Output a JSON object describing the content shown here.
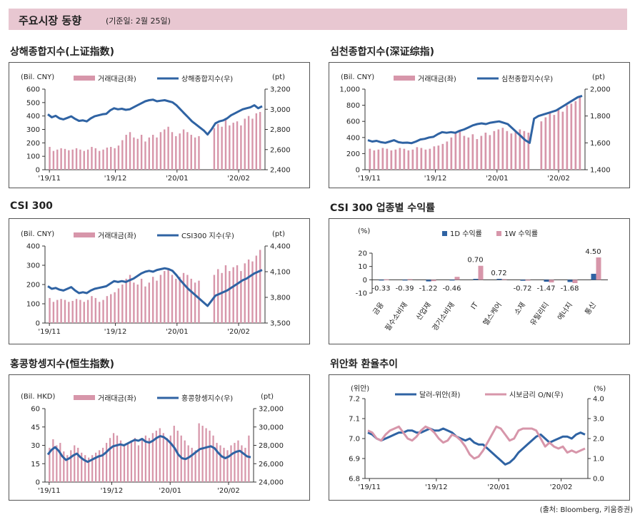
{
  "header": {
    "title": "주요시장 동향",
    "subtitle": "(기준일: 2월 25일)"
  },
  "source": "(출처: Bloomberg, 키움증권)",
  "colors": {
    "bar": "#d796aa",
    "line": "#2f63a3",
    "banner": "#e8c7d1"
  },
  "chart_data": [
    {
      "type": "bar+line",
      "title": "상해종합지수(上证指数)",
      "left_unit": "(Bil. CNY)",
      "right_unit": "(pt)",
      "legend": [
        "거래대금(좌)",
        "상해종합지수(우)"
      ],
      "x_ticks": [
        "'19/11",
        "'19/12",
        "'20/01",
        "'20/02"
      ],
      "left_ticks": [
        "0",
        "100",
        "200",
        "300",
        "400",
        "500",
        "600"
      ],
      "right_ticks": [
        "2,400",
        "2,600",
        "2,800",
        "3,000",
        "3,200"
      ],
      "ylim_left": [
        0,
        600
      ],
      "ylim_right": [
        2400,
        3200
      ],
      "line": [
        2950,
        2920,
        2935,
        2910,
        2900,
        2915,
        2930,
        2905,
        2885,
        2890,
        2880,
        2910,
        2930,
        2940,
        2950,
        2955,
        2990,
        3010,
        3000,
        3005,
        2995,
        3000,
        3020,
        3040,
        3060,
        3080,
        3090,
        3095,
        3080,
        3085,
        3090,
        3080,
        3070,
        3040,
        3000,
        2960,
        2920,
        2880,
        2850,
        2820,
        2790,
        2750,
        2800,
        2860,
        2880,
        2890,
        2910,
        2940,
        2960,
        2980,
        3000,
        3010,
        3020,
        3040,
        3010,
        3030
      ],
      "bars": [
        170,
        140,
        150,
        160,
        155,
        145,
        150,
        160,
        150,
        140,
        150,
        170,
        160,
        140,
        150,
        165,
        170,
        160,
        180,
        220,
        260,
        280,
        240,
        230,
        260,
        210,
        240,
        260,
        240,
        280,
        300,
        320,
        280,
        250,
        270,
        300,
        280,
        260,
        240,
        250,
        0,
        0,
        0,
        310,
        340,
        320,
        380,
        330,
        350,
        360,
        330,
        380,
        400,
        380,
        420,
        430
      ]
    },
    {
      "type": "bar+line",
      "title": "심천종합지수(深证综指)",
      "left_unit": "(Bil. CNY)",
      "right_unit": "(pt)",
      "legend": [
        "거래대금(좌)",
        "심천종합지수(우)"
      ],
      "x_ticks": [
        "'19/11",
        "'19/12",
        "'20/01",
        "'20/02"
      ],
      "left_ticks": [
        "0",
        "200",
        "400",
        "600",
        "800",
        "1,000"
      ],
      "right_ticks": [
        "1,400",
        "1,600",
        "1,800",
        "2,000"
      ],
      "ylim_left": [
        0,
        1000
      ],
      "ylim_right": [
        1400,
        2000
      ],
      "line": [
        1620,
        1610,
        1615,
        1605,
        1600,
        1610,
        1620,
        1605,
        1600,
        1602,
        1598,
        1610,
        1625,
        1630,
        1640,
        1645,
        1665,
        1680,
        1675,
        1680,
        1675,
        1690,
        1700,
        1715,
        1730,
        1740,
        1745,
        1740,
        1750,
        1755,
        1760,
        1750,
        1740,
        1710,
        1680,
        1650,
        1620,
        1600,
        1780,
        1800,
        1810,
        1820,
        1830,
        1840,
        1860,
        1880,
        1900,
        1920,
        1940,
        1950
      ],
      "bars": [
        260,
        240,
        250,
        270,
        260,
        240,
        250,
        270,
        260,
        240,
        250,
        280,
        270,
        250,
        260,
        290,
        300,
        320,
        350,
        400,
        450,
        480,
        420,
        400,
        440,
        380,
        420,
        460,
        430,
        480,
        500,
        520,
        480,
        450,
        470,
        500,
        480,
        460,
        0,
        0,
        600,
        650,
        700,
        680,
        750,
        720,
        800,
        820,
        850,
        900
      ]
    },
    {
      "type": "bar+line",
      "title": "CSI 300",
      "left_unit": "(Bil. CNY)",
      "right_unit": "(pt)",
      "legend": [
        "거래대금(좌)",
        "CSI300 지수(우)"
      ],
      "x_ticks": [
        "'19/11",
        "'19/12",
        "'20/01",
        "'20/02"
      ],
      "left_ticks": [
        "0",
        "100",
        "200",
        "300",
        "400"
      ],
      "right_ticks": [
        "3,500",
        "3,800",
        "4,100",
        "4,400"
      ],
      "ylim_left": [
        0,
        400
      ],
      "ylim_right": [
        3500,
        4400
      ],
      "line": [
        3930,
        3900,
        3910,
        3890,
        3880,
        3900,
        3920,
        3880,
        3850,
        3860,
        3850,
        3880,
        3900,
        3910,
        3920,
        3930,
        3960,
        3990,
        3980,
        3990,
        3980,
        4000,
        4020,
        4050,
        4080,
        4100,
        4110,
        4100,
        4120,
        4130,
        4140,
        4130,
        4110,
        4060,
        4000,
        3950,
        3900,
        3860,
        3820,
        3780,
        3740,
        3700,
        3760,
        3820,
        3840,
        3860,
        3880,
        3910,
        3940,
        3970,
        4000,
        4020,
        4050,
        4080,
        4100,
        4120
      ],
      "bars": [
        130,
        110,
        120,
        125,
        120,
        110,
        115,
        125,
        120,
        110,
        120,
        140,
        130,
        110,
        120,
        140,
        150,
        160,
        180,
        200,
        230,
        250,
        210,
        200,
        230,
        190,
        210,
        240,
        220,
        250,
        270,
        280,
        250,
        230,
        240,
        260,
        250,
        230,
        210,
        220,
        0,
        0,
        0,
        250,
        280,
        260,
        300,
        270,
        290,
        300,
        270,
        310,
        330,
        320,
        350,
        380
      ]
    },
    {
      "type": "bar",
      "title": "CSI 300 업종별 수익률",
      "unit": "(%)",
      "legend": [
        "1D 수익률",
        "1W 수익률"
      ],
      "ylim": [
        -10,
        20
      ],
      "y_ticks": [
        "-10",
        "0",
        "10",
        "20"
      ],
      "categories": [
        "금융",
        "필수소비재",
        "산업재",
        "경기소비재",
        "IT",
        "헬스케어",
        "소재",
        "유틸리티",
        "에너지",
        "통신"
      ],
      "series": [
        {
          "name": "1D 수익률",
          "values": [
            -0.33,
            -0.39,
            -1.22,
            -0.46,
            0.7,
            0.72,
            -0.72,
            -1.47,
            -1.68,
            4.5
          ]
        },
        {
          "name": "1W 수익률",
          "values": [
            0.3,
            0.5,
            -1.0,
            2.2,
            10.5,
            0.5,
            -0.6,
            -2.0,
            -2.5,
            16.8
          ]
        }
      ],
      "labels": [
        "-0.33",
        "-0.39",
        "-1.22",
        "-0.46",
        "0.70",
        "0.72",
        "-0.72",
        "-1.47",
        "-1.68",
        "4.50"
      ]
    },
    {
      "type": "bar+line",
      "title": "홍콩항셍지수(恒生指数)",
      "left_unit": "(Bil. HKD)",
      "right_unit": "(pt)",
      "legend": [
        "거래대금(좌)",
        "홍콩항셍지수(우)"
      ],
      "x_ticks": [
        "'19/11",
        "'19/12",
        "'20/01",
        "'20/02"
      ],
      "left_ticks": [
        "0",
        "15",
        "30",
        "45",
        "60"
      ],
      "right_ticks": [
        "24,000",
        "26,000",
        "28,000",
        "30,000",
        "32,000"
      ],
      "ylim_left": [
        0,
        60
      ],
      "ylim_right": [
        24000,
        32000
      ],
      "line": [
        27000,
        27500,
        27800,
        27400,
        26800,
        26400,
        26600,
        26900,
        27100,
        26700,
        26400,
        26200,
        26400,
        26600,
        26800,
        26900,
        27200,
        27600,
        27900,
        28000,
        28100,
        28000,
        28200,
        28400,
        28600,
        28500,
        28700,
        28400,
        28300,
        28500,
        28800,
        29000,
        28900,
        28600,
        28200,
        27700,
        27000,
        26600,
        26500,
        26700,
        27000,
        27300,
        27600,
        27700,
        27800,
        27900,
        27700,
        27200,
        26800,
        26600,
        26800,
        27100,
        27300,
        27400,
        27100,
        26800,
        26700
      ],
      "bars": [
        28,
        35,
        30,
        32,
        25,
        22,
        26,
        30,
        28,
        24,
        22,
        20,
        22,
        24,
        26,
        28,
        32,
        36,
        40,
        38,
        34,
        30,
        32,
        34,
        36,
        30,
        34,
        38,
        36,
        40,
        42,
        44,
        40,
        36,
        38,
        46,
        42,
        38,
        34,
        30,
        28,
        26,
        48,
        46,
        44,
        42,
        38,
        32,
        30,
        28,
        26,
        30,
        32,
        34,
        30,
        28,
        38
      ]
    },
    {
      "type": "line",
      "title": "위안화 환율추이",
      "left_unit": "(위안)",
      "right_unit": "(%)",
      "legend": [
        "달러-위안(좌)",
        "시보금리 O/N(우)"
      ],
      "x_ticks": [
        "'19/11",
        "'19/12",
        "'20/01",
        "'20/02"
      ],
      "left_ticks": [
        "6.8",
        "6.9",
        "7.0",
        "7.1",
        "7.2"
      ],
      "right_ticks": [
        "0.0",
        "1.0",
        "2.0",
        "3.0",
        "4.0"
      ],
      "ylim_left": [
        6.8,
        7.2
      ],
      "ylim_right": [
        0,
        4
      ],
      "series": [
        {
          "name": "달러-위안(좌)",
          "axis": "left",
          "values": [
            7.03,
            7.02,
            7.0,
            6.99,
            7.0,
            7.01,
            7.02,
            7.03,
            7.03,
            7.04,
            7.04,
            7.03,
            7.03,
            7.04,
            7.05,
            7.04,
            7.04,
            7.05,
            7.04,
            7.03,
            7.01,
            7.0,
            6.99,
            7.0,
            6.98,
            6.97,
            6.97,
            6.95,
            6.93,
            6.91,
            6.89,
            6.87,
            6.88,
            6.9,
            6.93,
            6.95,
            6.97,
            6.99,
            7.01,
            7.02,
            7.0,
            6.98,
            6.99,
            7.0,
            7.01,
            7.01,
            7.0,
            7.02,
            7.03,
            7.02
          ]
        },
        {
          "name": "시보금리 O/N(우)",
          "axis": "right",
          "values": [
            2.4,
            2.3,
            2.0,
            1.9,
            2.2,
            2.4,
            2.5,
            2.6,
            2.3,
            2.0,
            1.9,
            2.1,
            2.4,
            2.6,
            2.5,
            2.3,
            2.0,
            1.8,
            1.9,
            2.2,
            2.1,
            1.9,
            1.6,
            1.2,
            1.0,
            1.1,
            1.4,
            1.8,
            2.2,
            2.6,
            2.5,
            2.2,
            1.9,
            2.0,
            2.4,
            2.5,
            2.5,
            2.5,
            2.4,
            2.0,
            1.6,
            1.8,
            1.6,
            1.5,
            1.6,
            1.3,
            1.4,
            1.3,
            1.4,
            1.5
          ]
        }
      ]
    }
  ]
}
